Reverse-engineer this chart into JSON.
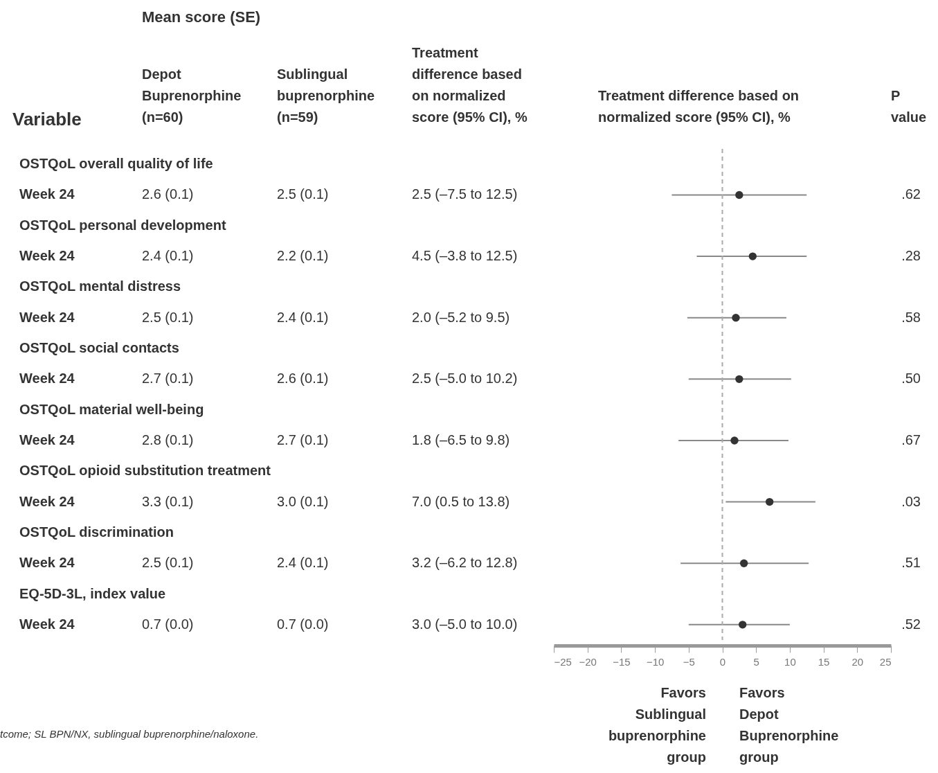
{
  "chart_data": {
    "type": "scatter",
    "orientation": "horizontal",
    "xlabel": "Treatment difference based on normalized score (95% CI), %",
    "categories": [
      null,
      null,
      null,
      null,
      null,
      null,
      null,
      null,
      null,
      null,
      null,
      null,
      null,
      null,
      null,
      null
    ],
    "values": [
      null,
      2.5,
      null,
      4.5,
      null,
      2.0,
      null,
      2.5,
      null,
      1.8,
      null,
      7.0,
      null,
      3.2,
      null,
      3.0
    ],
    "errors": [
      null,
      [
        -7.5,
        12.5
      ],
      null,
      [
        -3.8,
        12.5
      ],
      null,
      [
        -5.2,
        9.5
      ],
      null,
      [
        -5.0,
        10.2
      ],
      null,
      [
        -6.5,
        9.8
      ],
      null,
      [
        0.5,
        13.8
      ],
      null,
      [
        -6.2,
        12.8
      ],
      null,
      [
        -5.0,
        10.0
      ]
    ],
    "color": "#333333",
    "marker": "circle",
    "xlim": [
      -25,
      25
    ],
    "xticks": [
      -25,
      -20,
      -15,
      -10,
      -5,
      0,
      5,
      10,
      15,
      20,
      25
    ],
    "ref_lines": [
      {
        "axis": "x",
        "value": 0,
        "color": "#aaaaaa",
        "line_style": "dashed"
      }
    ],
    "annotations": [
      "Mean score (SE)",
      "Variable",
      "Depot Buprenorphine (n=60)",
      "Sublingual buprenorphine (n=59)",
      "Treatment difference based on normalized score (95% CI), %",
      "P value",
      "Favors Sublingual buprenorphine group",
      "Favors Depot Buprenorphine group",
      "tcome; SL BPN/NX, sublingual buprenorphine/naloxone.",
      "OSTQoL overall quality of life",
      "Week 24",
      "OSTQoL personal development",
      "Week 24",
      "OSTQoL mental distress",
      "Week 24",
      "OSTQoL social contacts",
      "Week 24",
      "OSTQoL material well-being",
      "Week 24",
      "OSTQoL opioid substitution treatment",
      "Week 24",
      "OSTQoL discrimination",
      "Week 24",
      "EQ-5D-3L, index value",
      "Week 24",
      "2.6 (0.1)",
      "2.5 (0.1)",
      "2.5 (–7.5 to 12.5)",
      ".62",
      "2.4 (0.1)",
      "2.2 (0.1)",
      "4.5 (–3.8 to 12.5)",
      ".28",
      "2.5 (0.1)",
      "2.4 (0.1)",
      "2.0 (–5.2 to 9.5)",
      ".58",
      "2.7 (0.1)",
      "2.6 (0.1)",
      "2.5 (–5.0 to 10.2)",
      ".50",
      "2.8 (0.1)",
      "2.7 (0.1)",
      "1.8 (–6.5 to 9.8)",
      ".67",
      "3.3 (0.1)",
      "3.0 (0.1)",
      "7.0 (0.5 to 13.8)",
      ".03",
      "2.5 (0.1)",
      "2.4 (0.1)",
      "3.2 (–6.2 to 12.8)",
      ".51",
      "0.7 (0.0)",
      "0.7 (0.0)",
      "3.0 (–5.0 to 10.0)",
      ".52"
    ]
  }
}
